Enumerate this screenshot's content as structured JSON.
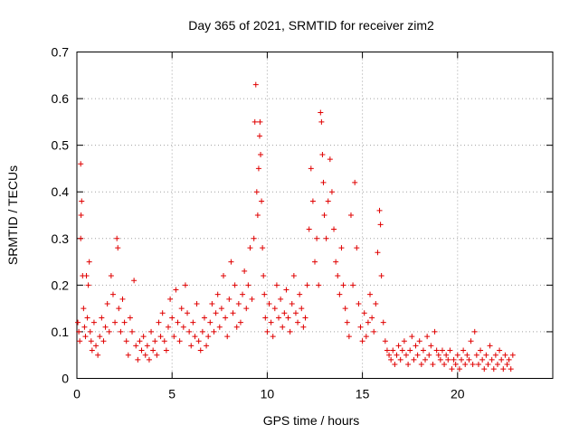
{
  "chart_data": {
    "type": "scatter",
    "title": "Day 365 of 2021, SRMTID for receiver zim2",
    "xlabel": "GPS time / hours",
    "ylabel": "SRMTID / TECUs",
    "xlim": [
      0,
      25
    ],
    "ylim": [
      0,
      0.7
    ],
    "xticks": [
      0,
      5,
      10,
      15,
      20
    ],
    "xtick_labels": [
      "0",
      "5",
      "10",
      "15",
      "20"
    ],
    "yticks": [
      0,
      0.1,
      0.2,
      0.3,
      0.4,
      0.5,
      0.6,
      0.7
    ],
    "ytick_labels": [
      "0",
      "0.1",
      "0.2",
      "0.3",
      "0.4",
      "0.5",
      "0.6",
      "0.7"
    ],
    "grid": true,
    "marker": "+",
    "color": "#e00000",
    "series": [
      {
        "name": "SRMTID",
        "points": [
          [
            0.05,
            0.12
          ],
          [
            0.1,
            0.1
          ],
          [
            0.15,
            0.08
          ],
          [
            0.2,
            0.3
          ],
          [
            0.2,
            0.46
          ],
          [
            0.22,
            0.35
          ],
          [
            0.25,
            0.38
          ],
          [
            0.3,
            0.22
          ],
          [
            0.35,
            0.15
          ],
          [
            0.4,
            0.11
          ],
          [
            0.45,
            0.09
          ],
          [
            0.5,
            0.22
          ],
          [
            0.55,
            0.13
          ],
          [
            0.6,
            0.2
          ],
          [
            0.65,
            0.25
          ],
          [
            0.7,
            0.1
          ],
          [
            0.75,
            0.08
          ],
          [
            0.8,
            0.06
          ],
          [
            0.9,
            0.12
          ],
          [
            1.0,
            0.07
          ],
          [
            1.1,
            0.05
          ],
          [
            1.2,
            0.09
          ],
          [
            1.3,
            0.13
          ],
          [
            1.4,
            0.08
          ],
          [
            1.5,
            0.11
          ],
          [
            1.6,
            0.16
          ],
          [
            1.7,
            0.1
          ],
          [
            1.8,
            0.22
          ],
          [
            1.9,
            0.18
          ],
          [
            2.0,
            0.12
          ],
          [
            2.1,
            0.3
          ],
          [
            2.15,
            0.28
          ],
          [
            2.2,
            0.15
          ],
          [
            2.3,
            0.1
          ],
          [
            2.4,
            0.17
          ],
          [
            2.5,
            0.12
          ],
          [
            2.6,
            0.08
          ],
          [
            2.7,
            0.05
          ],
          [
            2.8,
            0.13
          ],
          [
            2.9,
            0.1
          ],
          [
            3.0,
            0.21
          ],
          [
            3.1,
            0.07
          ],
          [
            3.2,
            0.04
          ],
          [
            3.3,
            0.08
          ],
          [
            3.4,
            0.06
          ],
          [
            3.5,
            0.09
          ],
          [
            3.6,
            0.05
          ],
          [
            3.7,
            0.07
          ],
          [
            3.8,
            0.04
          ],
          [
            3.9,
            0.1
          ],
          [
            4.0,
            0.06
          ],
          [
            4.1,
            0.08
          ],
          [
            4.2,
            0.05
          ],
          [
            4.3,
            0.12
          ],
          [
            4.4,
            0.09
          ],
          [
            4.5,
            0.14
          ],
          [
            4.6,
            0.08
          ],
          [
            4.7,
            0.06
          ],
          [
            4.8,
            0.11
          ],
          [
            4.9,
            0.17
          ],
          [
            5.0,
            0.13
          ],
          [
            5.1,
            0.09
          ],
          [
            5.2,
            0.19
          ],
          [
            5.3,
            0.12
          ],
          [
            5.4,
            0.08
          ],
          [
            5.5,
            0.15
          ],
          [
            5.6,
            0.11
          ],
          [
            5.7,
            0.2
          ],
          [
            5.8,
            0.14
          ],
          [
            5.9,
            0.1
          ],
          [
            6.0,
            0.07
          ],
          [
            6.1,
            0.12
          ],
          [
            6.2,
            0.09
          ],
          [
            6.3,
            0.16
          ],
          [
            6.4,
            0.08
          ],
          [
            6.5,
            0.06
          ],
          [
            6.6,
            0.1
          ],
          [
            6.7,
            0.13
          ],
          [
            6.8,
            0.07
          ],
          [
            6.9,
            0.09
          ],
          [
            7.0,
            0.12
          ],
          [
            7.1,
            0.16
          ],
          [
            7.2,
            0.1
          ],
          [
            7.3,
            0.14
          ],
          [
            7.4,
            0.18
          ],
          [
            7.5,
            0.11
          ],
          [
            7.6,
            0.15
          ],
          [
            7.7,
            0.22
          ],
          [
            7.8,
            0.13
          ],
          [
            7.9,
            0.09
          ],
          [
            8.0,
            0.17
          ],
          [
            8.1,
            0.25
          ],
          [
            8.2,
            0.14
          ],
          [
            8.3,
            0.2
          ],
          [
            8.4,
            0.11
          ],
          [
            8.5,
            0.16
          ],
          [
            8.6,
            0.12
          ],
          [
            8.7,
            0.18
          ],
          [
            8.8,
            0.23
          ],
          [
            8.9,
            0.15
          ],
          [
            9.0,
            0.2
          ],
          [
            9.1,
            0.28
          ],
          [
            9.2,
            0.17
          ],
          [
            9.3,
            0.3
          ],
          [
            9.35,
            0.55
          ],
          [
            9.4,
            0.63
          ],
          [
            9.45,
            0.4
          ],
          [
            9.5,
            0.35
          ],
          [
            9.55,
            0.45
          ],
          [
            9.6,
            0.52
          ],
          [
            9.62,
            0.55
          ],
          [
            9.65,
            0.48
          ],
          [
            9.7,
            0.38
          ],
          [
            9.75,
            0.28
          ],
          [
            9.8,
            0.22
          ],
          [
            9.85,
            0.18
          ],
          [
            9.9,
            0.13
          ],
          [
            10.0,
            0.1
          ],
          [
            10.1,
            0.16
          ],
          [
            10.2,
            0.12
          ],
          [
            10.3,
            0.09
          ],
          [
            10.4,
            0.15
          ],
          [
            10.5,
            0.2
          ],
          [
            10.6,
            0.13
          ],
          [
            10.7,
            0.17
          ],
          [
            10.8,
            0.11
          ],
          [
            10.9,
            0.14
          ],
          [
            11.0,
            0.19
          ],
          [
            11.1,
            0.13
          ],
          [
            11.2,
            0.1
          ],
          [
            11.3,
            0.16
          ],
          [
            11.4,
            0.22
          ],
          [
            11.5,
            0.14
          ],
          [
            11.6,
            0.12
          ],
          [
            11.7,
            0.18
          ],
          [
            11.8,
            0.15
          ],
          [
            11.9,
            0.11
          ],
          [
            12.0,
            0.13
          ],
          [
            12.1,
            0.2
          ],
          [
            12.2,
            0.32
          ],
          [
            12.3,
            0.45
          ],
          [
            12.4,
            0.38
          ],
          [
            12.5,
            0.25
          ],
          [
            12.6,
            0.3
          ],
          [
            12.7,
            0.2
          ],
          [
            12.8,
            0.57
          ],
          [
            12.85,
            0.55
          ],
          [
            12.9,
            0.48
          ],
          [
            12.95,
            0.42
          ],
          [
            13.0,
            0.35
          ],
          [
            13.1,
            0.3
          ],
          [
            13.2,
            0.38
          ],
          [
            13.3,
            0.47
          ],
          [
            13.4,
            0.4
          ],
          [
            13.5,
            0.32
          ],
          [
            13.6,
            0.25
          ],
          [
            13.7,
            0.22
          ],
          [
            13.8,
            0.18
          ],
          [
            13.9,
            0.28
          ],
          [
            14.0,
            0.2
          ],
          [
            14.1,
            0.15
          ],
          [
            14.2,
            0.12
          ],
          [
            14.3,
            0.09
          ],
          [
            14.4,
            0.35
          ],
          [
            14.5,
            0.2
          ],
          [
            14.6,
            0.42
          ],
          [
            14.7,
            0.28
          ],
          [
            14.8,
            0.16
          ],
          [
            14.9,
            0.11
          ],
          [
            15.0,
            0.08
          ],
          [
            15.1,
            0.14
          ],
          [
            15.2,
            0.09
          ],
          [
            15.3,
            0.12
          ],
          [
            15.4,
            0.18
          ],
          [
            15.5,
            0.13
          ],
          [
            15.6,
            0.1
          ],
          [
            15.7,
            0.16
          ],
          [
            15.8,
            0.27
          ],
          [
            15.9,
            0.36
          ],
          [
            15.95,
            0.33
          ],
          [
            16.0,
            0.22
          ],
          [
            16.1,
            0.12
          ],
          [
            16.2,
            0.08
          ],
          [
            16.3,
            0.06
          ],
          [
            16.4,
            0.05
          ],
          [
            16.5,
            0.04
          ],
          [
            16.6,
            0.06
          ],
          [
            16.7,
            0.03
          ],
          [
            16.8,
            0.05
          ],
          [
            16.9,
            0.07
          ],
          [
            17.0,
            0.04
          ],
          [
            17.1,
            0.06
          ],
          [
            17.2,
            0.08
          ],
          [
            17.3,
            0.05
          ],
          [
            17.4,
            0.03
          ],
          [
            17.5,
            0.06
          ],
          [
            17.6,
            0.09
          ],
          [
            17.7,
            0.04
          ],
          [
            17.8,
            0.07
          ],
          [
            17.9,
            0.05
          ],
          [
            18.0,
            0.08
          ],
          [
            18.1,
            0.03
          ],
          [
            18.2,
            0.06
          ],
          [
            18.3,
            0.04
          ],
          [
            18.4,
            0.09
          ],
          [
            18.5,
            0.05
          ],
          [
            18.6,
            0.07
          ],
          [
            18.7,
            0.03
          ],
          [
            18.8,
            0.1
          ],
          [
            18.9,
            0.06
          ],
          [
            19.0,
            0.05
          ],
          [
            19.1,
            0.04
          ],
          [
            19.2,
            0.06
          ],
          [
            19.3,
            0.03
          ],
          [
            19.4,
            0.05
          ],
          [
            19.5,
            0.04
          ],
          [
            19.6,
            0.06
          ],
          [
            19.7,
            0.02
          ],
          [
            19.8,
            0.04
          ],
          [
            19.9,
            0.03
          ],
          [
            20.0,
            0.05
          ],
          [
            20.1,
            0.02
          ],
          [
            20.2,
            0.04
          ],
          [
            20.3,
            0.06
          ],
          [
            20.4,
            0.03
          ],
          [
            20.5,
            0.05
          ],
          [
            20.6,
            0.04
          ],
          [
            20.7,
            0.08
          ],
          [
            20.8,
            0.03
          ],
          [
            20.9,
            0.1
          ],
          [
            21.0,
            0.05
          ],
          [
            21.1,
            0.03
          ],
          [
            21.2,
            0.06
          ],
          [
            21.3,
            0.04
          ],
          [
            21.4,
            0.02
          ],
          [
            21.5,
            0.05
          ],
          [
            21.6,
            0.03
          ],
          [
            21.7,
            0.07
          ],
          [
            21.8,
            0.04
          ],
          [
            21.9,
            0.02
          ],
          [
            22.0,
            0.05
          ],
          [
            22.1,
            0.03
          ],
          [
            22.2,
            0.06
          ],
          [
            22.3,
            0.04
          ],
          [
            22.4,
            0.02
          ],
          [
            22.5,
            0.05
          ],
          [
            22.6,
            0.03
          ],
          [
            22.7,
            0.04
          ],
          [
            22.8,
            0.02
          ],
          [
            22.9,
            0.05
          ]
        ]
      }
    ]
  }
}
